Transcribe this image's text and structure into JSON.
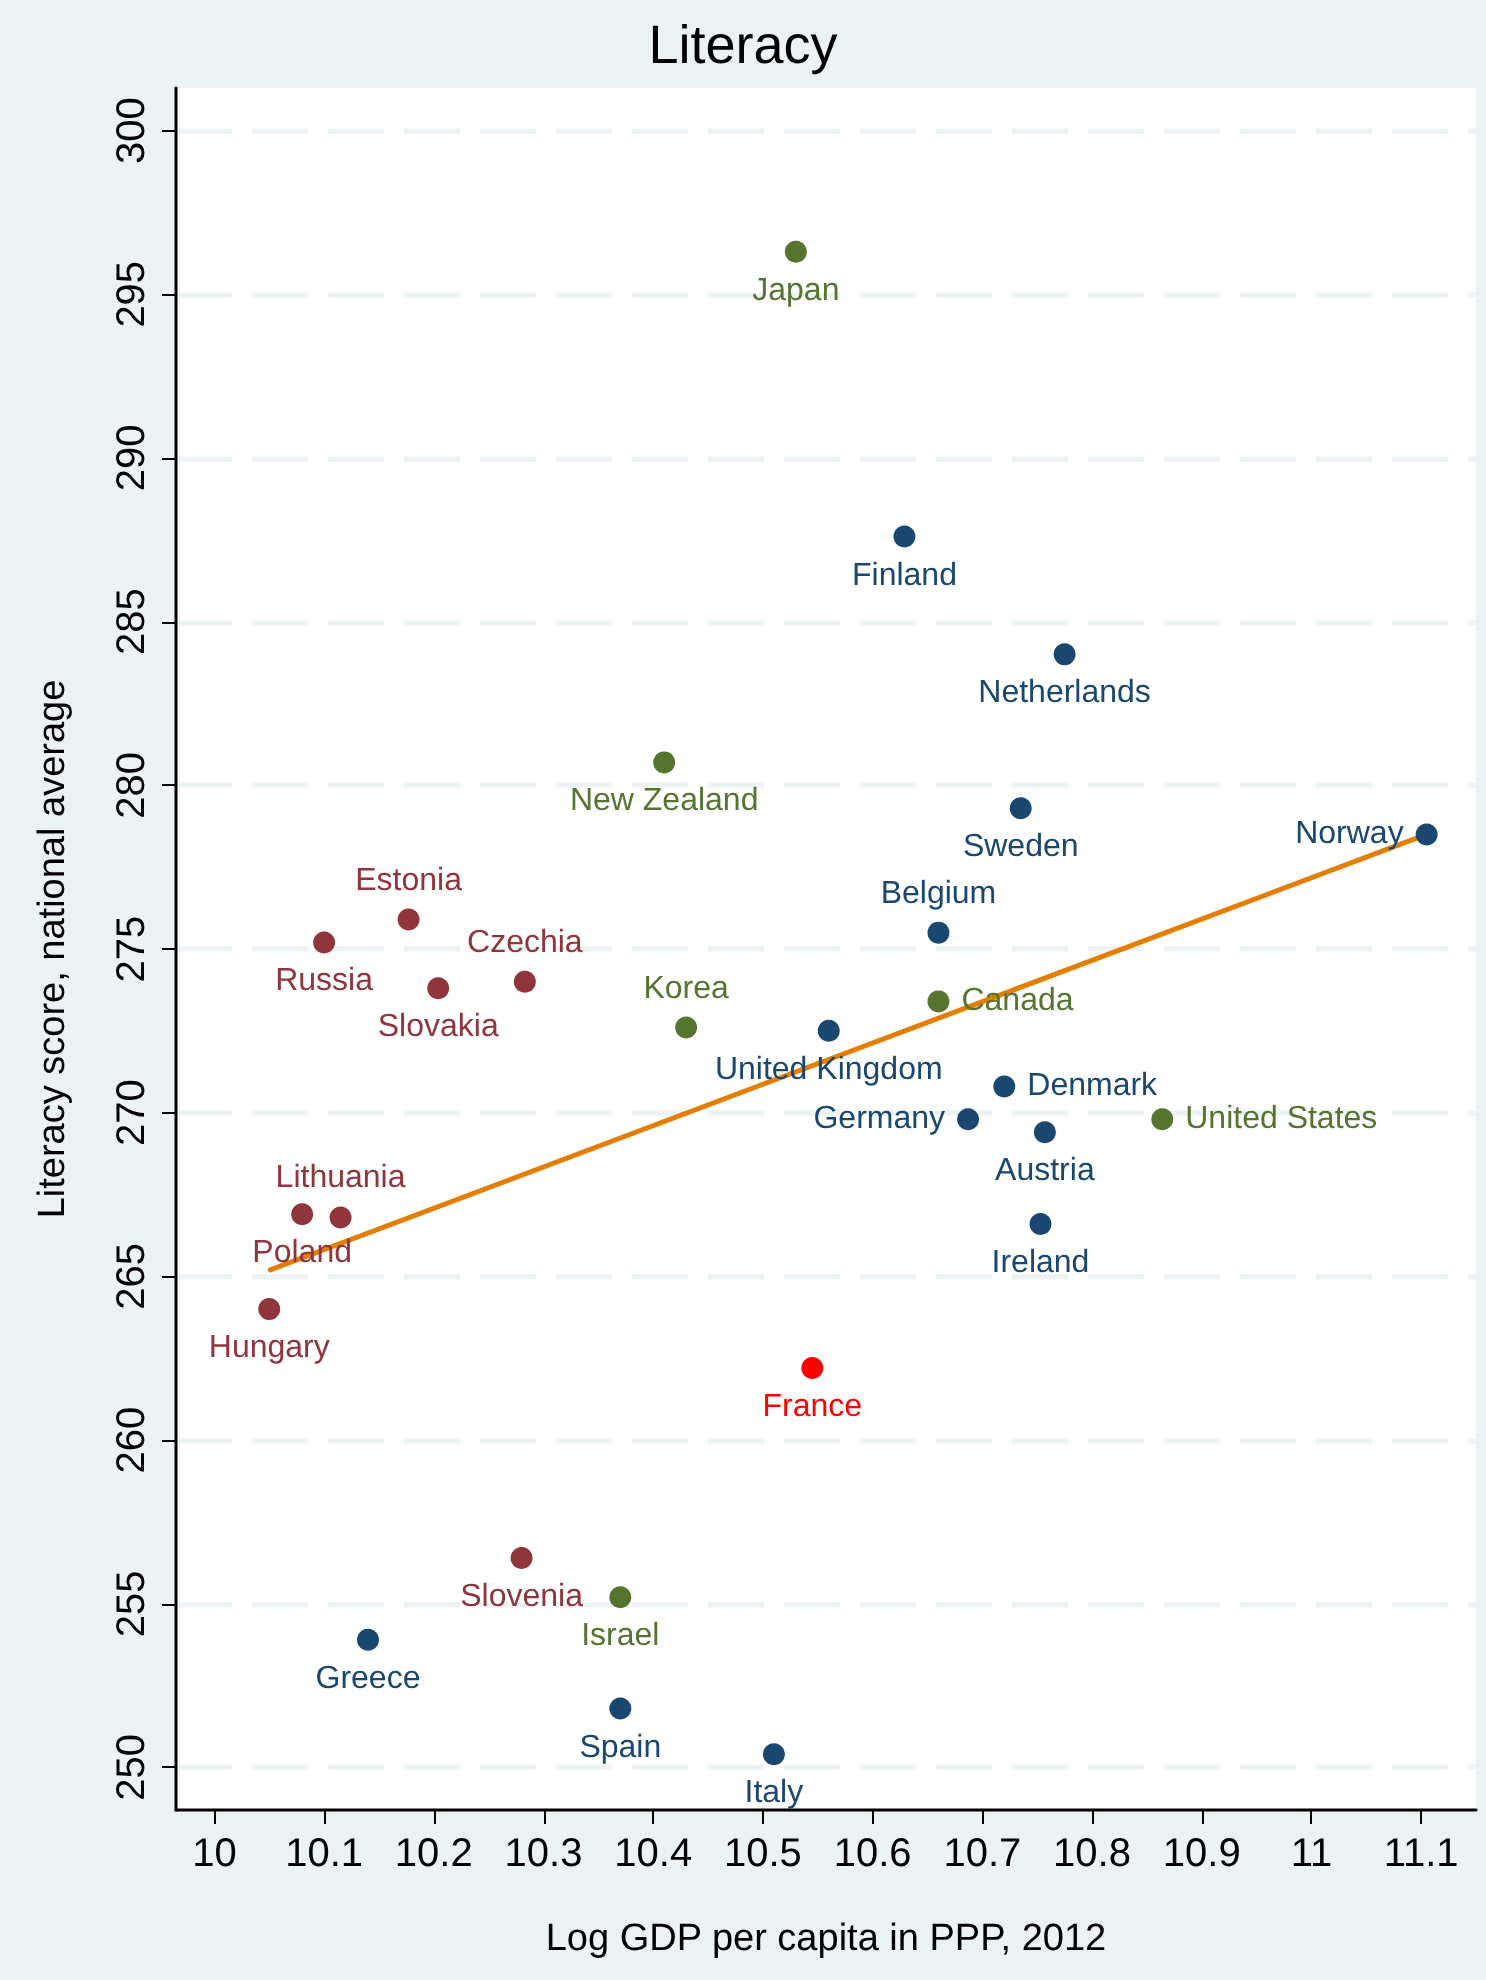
{
  "chart_data": {
    "type": "scatter",
    "title": "Literacy",
    "xlabel": "Log GDP per capita in PPP, 2012",
    "ylabel": "Literacy score, national average",
    "xlim": [
      9.965,
      11.15
    ],
    "ylim": [
      248.7,
      301.3
    ],
    "xticks": [
      10,
      10.1,
      10.2,
      10.3,
      10.4,
      10.5,
      10.6,
      10.7,
      10.8,
      10.9,
      11,
      11.1
    ],
    "yticks": [
      250,
      255,
      260,
      265,
      270,
      275,
      280,
      285,
      290,
      295,
      300
    ],
    "grid": "y",
    "marker": "circle",
    "series": [
      {
        "color": "#1a476f",
        "x": [
          10.629,
          10.775,
          10.735,
          11.105,
          10.66,
          10.56,
          10.72,
          10.687,
          10.757,
          10.753,
          10.14,
          10.37,
          10.51
        ],
        "values": [
          287.6,
          284.0,
          279.3,
          278.5,
          275.5,
          272.5,
          270.8,
          269.8,
          269.4,
          266.6,
          253.9,
          251.8,
          250.4
        ],
        "value_labels": [
          "Finland",
          "Netherlands",
          "Sweden",
          "Norway",
          "Belgium",
          "United Kingdom",
          "Denmark",
          "Germany",
          "Austria",
          "Ireland",
          "Greece",
          "Spain",
          "Italy"
        ]
      },
      {
        "color": "#55752f",
        "x": [
          10.53,
          10.41,
          10.66,
          10.43,
          10.864,
          10.37
        ],
        "values": [
          296.3,
          280.7,
          273.4,
          272.6,
          269.8,
          255.2
        ],
        "value_labels": [
          "Japan",
          "New Zealand",
          "Canada",
          "Korea",
          "United States",
          "Israel"
        ]
      },
      {
        "color": "#90353b",
        "x": [
          10.177,
          10.1,
          10.204,
          10.283,
          10.08,
          10.115,
          10.05,
          10.28
        ],
        "values": [
          275.9,
          275.2,
          273.8,
          274.0,
          266.9,
          266.8,
          264.0,
          256.4
        ],
        "value_labels": [
          "Estonia",
          "Russia",
          "Slovakia",
          "Czechia",
          "Poland",
          "Lithuania",
          "Hungary",
          "Slovenia"
        ]
      },
      {
        "color": "#ff0000",
        "x": [
          10.545
        ],
        "values": [
          262.2
        ],
        "value_labels": [
          "France"
        ]
      },
      {
        "type": "line",
        "marker": "none",
        "color": "#e37e00",
        "x": [
          10.051,
          11.105
        ],
        "values": [
          265.2,
          278.5
        ]
      }
    ]
  }
}
